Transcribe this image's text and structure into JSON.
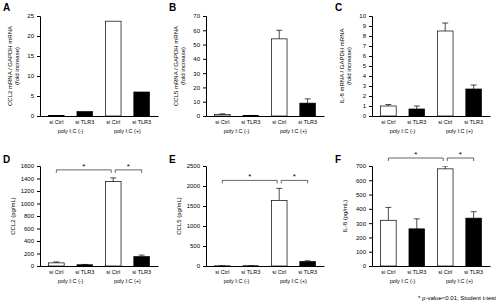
{
  "chart_data": [
    {
      "type": "bar",
      "title": "A",
      "y_label": [
        "CCL2 mRNA / GAPDH mRNA",
        "(fold increase)"
      ],
      "categories": [
        "si Ctrl",
        "si TLR3",
        "si Ctrl",
        "si TLR3"
      ],
      "groups": [
        "poly I:C (-)",
        "poly I:C (+)"
      ],
      "values": [
        0.1,
        1.1,
        23.7,
        6.0
      ],
      "colors": [
        "#ffffff",
        "#000000",
        "#ffffff",
        "#000000"
      ],
      "ylim": [
        0,
        25
      ],
      "yticks": [
        0,
        5,
        10,
        15,
        20,
        25
      ]
    },
    {
      "type": "bar",
      "title": "B",
      "y_label": [
        "CCL5 mRNA / GAPDH mRNA",
        "(fold increase)"
      ],
      "categories": [
        "si Ctrl",
        "si TLR3",
        "si Ctrl",
        "si TLR3"
      ],
      "groups": [
        "poly I:C (-)",
        "poly I:C (+)"
      ],
      "values": [
        1.0,
        0.3,
        54,
        9
      ],
      "errors": [
        0.5,
        0.1,
        6,
        3
      ],
      "colors": [
        "#ffffff",
        "#000000",
        "#ffffff",
        "#000000"
      ],
      "ylim": [
        0,
        70
      ],
      "yticks": [
        0,
        10,
        20,
        30,
        40,
        50,
        60,
        70
      ]
    },
    {
      "type": "bar",
      "title": "C",
      "y_label": [
        "IL-8 mRNA / GAPDH mRNA",
        "(fold increase)"
      ],
      "categories": [
        "si Ctrl",
        "si TLR3",
        "si Ctrl",
        "si TLR3"
      ],
      "groups": [
        "poly I:C (-)",
        "poly I:C (+)"
      ],
      "values": [
        1.0,
        0.7,
        8.5,
        2.7
      ],
      "errors": [
        0.15,
        0.3,
        0.8,
        0.4
      ],
      "colors": [
        "#ffffff",
        "#000000",
        "#ffffff",
        "#000000"
      ],
      "ylim": [
        0,
        10
      ],
      "yticks": [
        0,
        1,
        2,
        3,
        4,
        5,
        6,
        7,
        8,
        9,
        10
      ]
    },
    {
      "type": "bar",
      "title": "D",
      "y_label": [
        "CCL2 (pg/mL)"
      ],
      "categories": [
        "si Ctrl",
        "si TLR3",
        "si Ctrl",
        "si TLR3"
      ],
      "groups": [
        "poly I:C (-)",
        "poly I:C (+)"
      ],
      "values": [
        50,
        20,
        1350,
        150
      ],
      "errors": [
        15,
        5,
        60,
        25
      ],
      "colors": [
        "#ffffff",
        "#000000",
        "#ffffff",
        "#000000"
      ],
      "ylim": [
        0,
        1600
      ],
      "yticks": [
        0,
        200,
        400,
        600,
        800,
        1000,
        1200,
        1400,
        1600
      ],
      "annotations": [
        {
          "from": 0,
          "to": 2,
          "text": "*"
        },
        {
          "from": 2,
          "to": 3,
          "text": "*"
        }
      ]
    },
    {
      "type": "bar",
      "title": "E",
      "y_label": [
        "CCL5 (pg/mL)"
      ],
      "categories": [
        "si Ctrl",
        "si TLR3",
        "si Ctrl",
        "si TLR3"
      ],
      "groups": [
        "poly I:C (-)",
        "poly I:C (+)"
      ],
      "values": [
        5,
        5,
        1640,
        110
      ],
      "errors": [
        0,
        0,
        300,
        20
      ],
      "colors": [
        "#ffffff",
        "#000000",
        "#ffffff",
        "#000000"
      ],
      "ylim": [
        0,
        2500
      ],
      "yticks": [
        0,
        500,
        1000,
        1500,
        2000,
        2500
      ],
      "annotations": [
        {
          "from": 0,
          "to": 2,
          "text": "*"
        },
        {
          "from": 2,
          "to": 3,
          "text": "*"
        }
      ]
    },
    {
      "type": "bar",
      "title": "F",
      "y_label": [
        "IL-8 (pg/mL)"
      ],
      "categories": [
        "si Ctrl",
        "si TLR3",
        "si Ctrl",
        "si TLR3"
      ],
      "groups": [
        "poly I:C (-)",
        "poly I:C (+)"
      ],
      "values": [
        320,
        260,
        680,
        335
      ],
      "errors": [
        90,
        70,
        20,
        45
      ],
      "colors": [
        "#ffffff",
        "#000000",
        "#ffffff",
        "#000000"
      ],
      "ylim": [
        0,
        700
      ],
      "yticks": [
        0,
        100,
        200,
        300,
        400,
        500,
        600,
        700
      ],
      "annotations": [
        {
          "from": 0,
          "to": 2,
          "text": "*"
        },
        {
          "from": 2,
          "to": 3,
          "text": "*"
        }
      ]
    }
  ],
  "footnote": "* p-value<0.01; Student t-test"
}
